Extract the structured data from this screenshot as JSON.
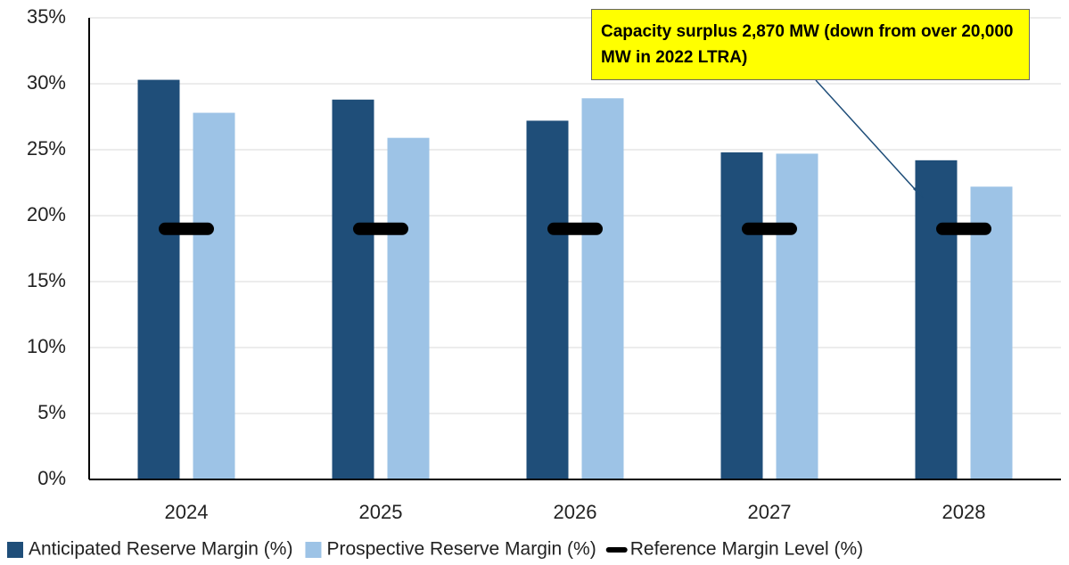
{
  "chart_data": {
    "type": "bar",
    "categories": [
      "2024",
      "2025",
      "2026",
      "2027",
      "2028"
    ],
    "series": [
      {
        "name": "Anticipated Reserve Margin (%)",
        "color": "#1f4e79",
        "style": "bar",
        "values": [
          30.3,
          28.8,
          27.2,
          24.8,
          24.2
        ]
      },
      {
        "name": "Prospective Reserve Margin (%)",
        "color": "#9dc3e6",
        "style": "bar",
        "values": [
          27.8,
          25.9,
          28.9,
          24.7,
          22.2
        ]
      },
      {
        "name": "Reference Margin Level (%)",
        "color": "#000000",
        "style": "dash",
        "values": [
          19.0,
          19.0,
          19.0,
          19.0,
          19.0
        ]
      }
    ],
    "ylim": [
      0,
      35
    ],
    "yticks": [
      {
        "value": 0,
        "label": "0%"
      },
      {
        "value": 5,
        "label": "5%"
      },
      {
        "value": 10,
        "label": "10%"
      },
      {
        "value": 15,
        "label": "15%"
      },
      {
        "value": 20,
        "label": "20%"
      },
      {
        "value": 25,
        "label": "25%"
      },
      {
        "value": 30,
        "label": "30%"
      },
      {
        "value": 35,
        "label": "35%"
      }
    ],
    "grid": true,
    "legend": "bottom",
    "annotation": {
      "text": "Capacity surplus 2,870 MW (down from over 20,000 MW in 2022 LTRA)",
      "color": "#ffff00"
    }
  }
}
